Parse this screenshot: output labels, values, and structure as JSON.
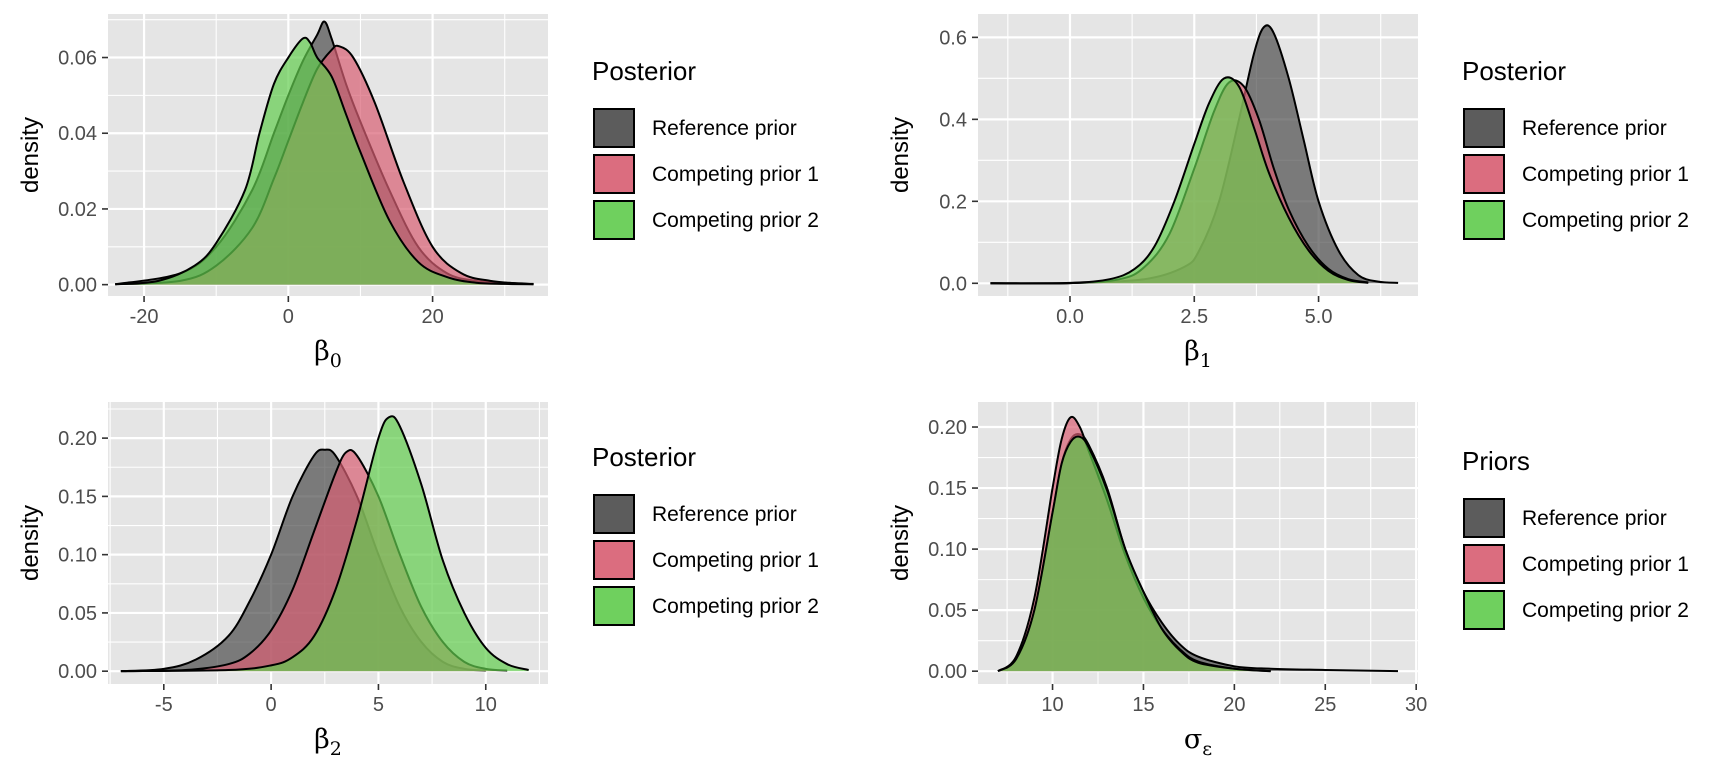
{
  "colors": {
    "panel_bg": "#e5e5e5",
    "grid": "#ffffff",
    "reference": "#4d4d4d",
    "competing1": "#d95f73",
    "competing2": "#62cd4f",
    "outline": "#000000"
  },
  "chart_data": [
    {
      "type": "area",
      "xlabel": "β",
      "xlabel_sub": "0",
      "ylabel": "density",
      "xlim": [
        -25,
        36
      ],
      "ylim": [
        -0.003,
        0.0715
      ],
      "xticks": [
        -20,
        0,
        20
      ],
      "xtick_labels": [
        "-20",
        "0",
        "20"
      ],
      "yticks": [
        0,
        0.02,
        0.04,
        0.06
      ],
      "ytick_labels": [
        "0.00",
        "0.02",
        "0.04",
        "0.06"
      ],
      "legend": {
        "title": "Posterior",
        "position": "right",
        "entries": [
          "Reference prior",
          "Competing prior 1",
          "Competing prior 2"
        ]
      },
      "series": [
        {
          "name": "Reference prior",
          "color": "#4d4d4d",
          "x": [
            -24,
            -15,
            -10,
            -5,
            -2,
            0,
            2,
            4,
            5,
            6,
            8,
            10,
            14,
            18,
            22,
            26,
            30,
            34
          ],
          "y": [
            0.0001,
            0.003,
            0.01,
            0.025,
            0.04,
            0.05,
            0.059,
            0.066,
            0.0695,
            0.065,
            0.053,
            0.043,
            0.025,
            0.01,
            0.003,
            0.001,
            0.0005,
            0.0002
          ]
        },
        {
          "name": "Competing prior 1",
          "color": "#d95f73",
          "x": [
            -24,
            -15,
            -10,
            -5,
            -2,
            0,
            2,
            4,
            6,
            7,
            9,
            12,
            16,
            20,
            24,
            28,
            32,
            34
          ],
          "y": [
            0.0001,
            0.001,
            0.005,
            0.015,
            0.028,
            0.038,
            0.048,
            0.057,
            0.062,
            0.063,
            0.06,
            0.048,
            0.027,
            0.01,
            0.003,
            0.001,
            0.0003,
            0.0001
          ]
        },
        {
          "name": "Competing prior 2",
          "color": "#62cd4f",
          "x": [
            -24,
            -18,
            -13,
            -10,
            -6,
            -4,
            -2,
            0,
            2,
            3,
            4,
            6,
            8,
            10,
            14,
            18,
            22,
            26,
            30,
            34
          ],
          "y": [
            0.0001,
            0.001,
            0.005,
            0.011,
            0.025,
            0.04,
            0.053,
            0.06,
            0.065,
            0.064,
            0.06,
            0.055,
            0.045,
            0.035,
            0.017,
            0.006,
            0.002,
            0.0005,
            0.0002,
            0.0001
          ]
        }
      ]
    },
    {
      "type": "area",
      "xlabel": "β",
      "xlabel_sub": "1",
      "ylabel": "density",
      "xlim": [
        -1.85,
        7.0
      ],
      "ylim": [
        -0.031,
        0.657
      ],
      "xticks": [
        0,
        2.5,
        5
      ],
      "xtick_labels": [
        "0.0",
        "2.5",
        "5.0"
      ],
      "yticks": [
        0,
        0.2,
        0.4,
        0.6
      ],
      "ytick_labels": [
        "0.0",
        "0.2",
        "0.4",
        "0.6"
      ],
      "legend": {
        "title": "Posterior",
        "position": "right",
        "entries": [
          "Reference prior",
          "Competing prior 1",
          "Competing prior 2"
        ]
      },
      "series": [
        {
          "name": "Reference prior",
          "color": "#4d4d4d",
          "x": [
            -1.6,
            0,
            1.5,
            2.3,
            2.6,
            3.0,
            3.4,
            3.7,
            3.9,
            4.1,
            4.4,
            4.7,
            5.0,
            5.4,
            5.8,
            6.2,
            6.6
          ],
          "y": [
            0,
            0.0005,
            0.01,
            0.04,
            0.08,
            0.2,
            0.4,
            0.56,
            0.625,
            0.61,
            0.5,
            0.35,
            0.2,
            0.08,
            0.02,
            0.004,
            0.001
          ]
        },
        {
          "name": "Competing prior 1",
          "color": "#d95f73",
          "x": [
            -1.6,
            0,
            1.0,
            1.5,
            2.0,
            2.5,
            2.9,
            3.2,
            3.5,
            3.8,
            4.1,
            4.4,
            4.8,
            5.2,
            5.6,
            6.0
          ],
          "y": [
            0,
            0.0005,
            0.01,
            0.04,
            0.12,
            0.28,
            0.42,
            0.49,
            0.48,
            0.4,
            0.28,
            0.18,
            0.09,
            0.035,
            0.01,
            0.002
          ]
        },
        {
          "name": "Competing prior 2",
          "color": "#62cd4f",
          "x": [
            -1.6,
            0,
            0.8,
            1.3,
            1.7,
            2.1,
            2.5,
            2.8,
            3.1,
            3.4,
            3.7,
            4.0,
            4.4,
            4.8,
            5.2,
            5.6,
            6.0
          ],
          "y": [
            0,
            0.001,
            0.01,
            0.035,
            0.09,
            0.2,
            0.34,
            0.44,
            0.5,
            0.48,
            0.38,
            0.27,
            0.16,
            0.08,
            0.03,
            0.008,
            0.001
          ]
        }
      ]
    },
    {
      "type": "area",
      "xlabel": "β",
      "xlabel_sub": "2",
      "ylabel": "density",
      "xlim": [
        -7.6,
        12.9
      ],
      "ylim": [
        -0.011,
        0.231
      ],
      "xticks": [
        -5,
        0,
        5,
        10
      ],
      "xtick_labels": [
        "-5",
        "0",
        "5",
        "10"
      ],
      "yticks": [
        0,
        0.05,
        0.1,
        0.15,
        0.2
      ],
      "ytick_labels": [
        "0.00",
        "0.05",
        "0.10",
        "0.15",
        "0.20"
      ],
      "legend": {
        "title": "Posterior",
        "position": "right",
        "entries": [
          "Reference prior",
          "Competing prior 1",
          "Competing prior 2"
        ]
      },
      "series": [
        {
          "name": "Reference prior",
          "color": "#4d4d4d",
          "x": [
            -7,
            -5,
            -3.5,
            -2,
            -1,
            0,
            1,
            2,
            2.5,
            3,
            4,
            5,
            6,
            7,
            8,
            9,
            10
          ],
          "y": [
            0,
            0.002,
            0.01,
            0.03,
            0.06,
            0.1,
            0.15,
            0.185,
            0.19,
            0.185,
            0.15,
            0.1,
            0.055,
            0.025,
            0.008,
            0.002,
            0.0005
          ]
        },
        {
          "name": "Competing prior 1",
          "color": "#d95f73",
          "x": [
            -7,
            -4,
            -2,
            -1,
            0,
            1,
            2,
            3,
            3.5,
            4,
            5,
            6,
            7,
            8,
            9,
            10,
            11
          ],
          "y": [
            0,
            0.001,
            0.006,
            0.015,
            0.035,
            0.07,
            0.12,
            0.17,
            0.188,
            0.185,
            0.15,
            0.1,
            0.055,
            0.025,
            0.008,
            0.002,
            0.0005
          ]
        },
        {
          "name": "Competing prior 2",
          "color": "#62cd4f",
          "x": [
            -7,
            -2,
            0,
            1,
            2,
            3,
            4,
            5,
            5.5,
            6,
            7,
            8,
            9,
            10,
            11,
            12
          ],
          "y": [
            0,
            0.001,
            0.005,
            0.012,
            0.03,
            0.07,
            0.13,
            0.2,
            0.218,
            0.21,
            0.16,
            0.095,
            0.05,
            0.02,
            0.006,
            0.001
          ]
        }
      ]
    },
    {
      "type": "area",
      "xlabel": "σ",
      "xlabel_sub": "ε",
      "ylabel": "density",
      "xlim": [
        5.9,
        30.1
      ],
      "ylim": [
        -0.0105,
        0.2205
      ],
      "xticks": [
        10,
        15,
        20,
        25,
        30
      ],
      "xtick_labels": [
        "10",
        "15",
        "20",
        "25",
        "30"
      ],
      "yticks": [
        0,
        0.05,
        0.1,
        0.15,
        0.2
      ],
      "ytick_labels": [
        "0.00",
        "0.05",
        "0.10",
        "0.15",
        "0.20"
      ],
      "legend": {
        "title": "Priors",
        "position": "right",
        "entries": [
          "Reference prior",
          "Competing prior 1",
          "Competing prior 2"
        ]
      },
      "series": [
        {
          "name": "Reference prior",
          "color": "#4d4d4d",
          "x": [
            7,
            8,
            9,
            10,
            10.5,
            11,
            11.5,
            12,
            13,
            14,
            15,
            16,
            17,
            18,
            20,
            22,
            25,
            29
          ],
          "y": [
            0,
            0.01,
            0.05,
            0.13,
            0.17,
            0.19,
            0.194,
            0.185,
            0.15,
            0.1,
            0.065,
            0.04,
            0.022,
            0.012,
            0.004,
            0.002,
            0.001,
            0
          ]
        },
        {
          "name": "Competing prior 1",
          "color": "#d95f73",
          "x": [
            7,
            8,
            9,
            10,
            10.5,
            11,
            11.5,
            12,
            13,
            14,
            15,
            16,
            17,
            18,
            20,
            22
          ],
          "y": [
            0,
            0.012,
            0.06,
            0.15,
            0.19,
            0.208,
            0.2,
            0.18,
            0.14,
            0.095,
            0.06,
            0.035,
            0.018,
            0.008,
            0.002,
            0
          ]
        },
        {
          "name": "Competing prior 2",
          "color": "#62cd4f",
          "x": [
            7,
            8,
            9,
            10,
            10.5,
            11,
            11.5,
            12,
            13,
            14,
            15,
            16,
            17,
            18,
            20,
            22
          ],
          "y": [
            0,
            0.01,
            0.05,
            0.13,
            0.17,
            0.188,
            0.192,
            0.183,
            0.148,
            0.1,
            0.065,
            0.035,
            0.017,
            0.007,
            0.002,
            0
          ]
        }
      ]
    }
  ]
}
